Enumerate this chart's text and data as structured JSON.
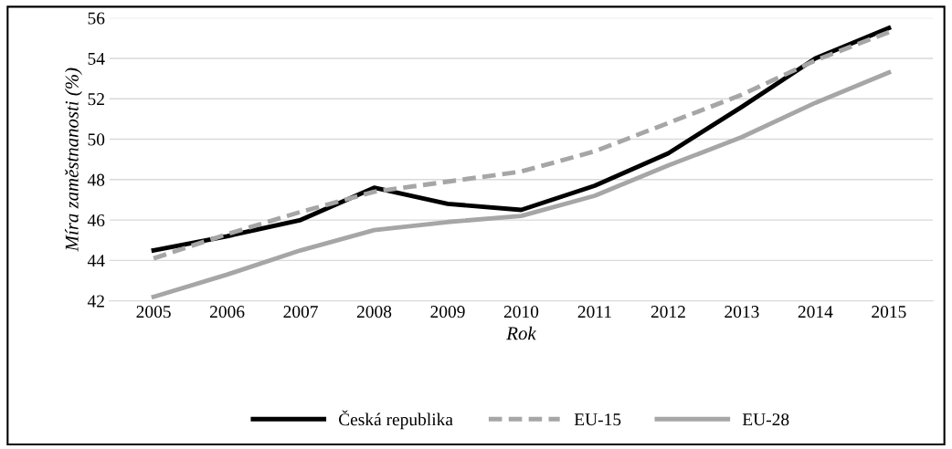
{
  "chart_data": {
    "type": "line",
    "xlabel": "Rok",
    "ylabel": "Míra zaměstnanosti (%)",
    "categories": [
      "2005",
      "2006",
      "2007",
      "2008",
      "2009",
      "2010",
      "2011",
      "2012",
      "2013",
      "2014",
      "2015"
    ],
    "series": [
      {
        "name": "Česká republika",
        "color": "#000000",
        "line_style": "solid",
        "values": [
          44.5,
          45.2,
          46.0,
          47.6,
          46.8,
          46.5,
          47.7,
          49.3,
          51.6,
          54.0,
          55.5
        ]
      },
      {
        "name": "EU-15",
        "color": "#a6a6a6",
        "line_style": "dashed",
        "values": [
          44.1,
          45.3,
          46.4,
          47.4,
          47.9,
          48.4,
          49.4,
          50.8,
          52.2,
          53.9,
          55.3
        ]
      },
      {
        "name": "EU-28",
        "color": "#a6a6a6",
        "line_style": "solid",
        "values": [
          42.2,
          43.3,
          44.5,
          45.5,
          45.9,
          46.2,
          47.2,
          48.7,
          50.1,
          51.8,
          53.3
        ]
      }
    ],
    "ylim": [
      42,
      56
    ],
    "yticks": [
      42,
      44,
      46,
      48,
      50,
      52,
      54,
      56
    ],
    "grid": "y",
    "legend": "bottom",
    "marker": "none"
  }
}
